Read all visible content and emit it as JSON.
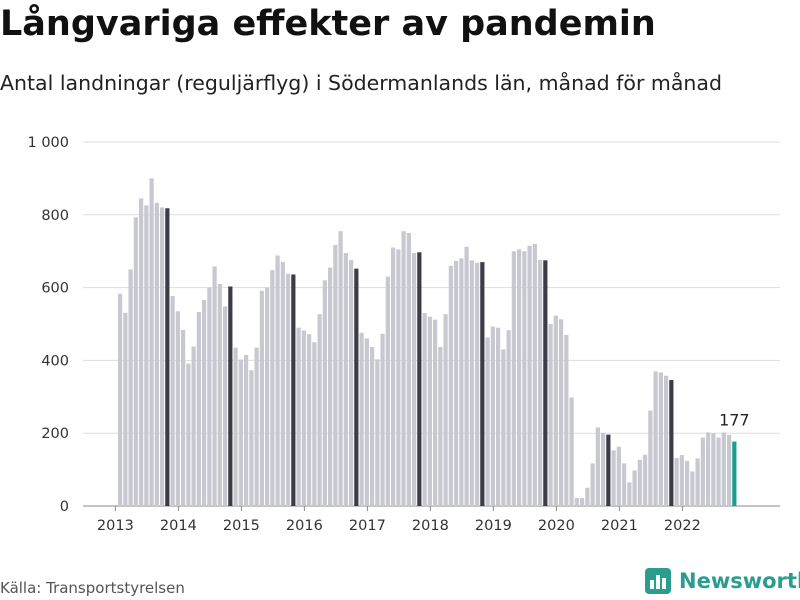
{
  "header": {
    "title": "Långvariga effekter av pandemin",
    "subtitle": "Antal landningar (reguljärflyg) i Södermanlands län, månad för månad"
  },
  "footer": {
    "source": "Källa: Transportstyrelsen",
    "brand": "Newsworthy",
    "brand_icon": "bar-chart-icon"
  },
  "colors": {
    "bar": "#c8c8d0",
    "highlight": "#3c3c46",
    "last": "#1a9e90",
    "grid": "#dddddd",
    "brand": "#2a9d8f"
  },
  "chart_data": {
    "type": "bar",
    "title": "Långvariga effekter av pandemin",
    "subtitle": "Antal landningar (reguljärflyg) i Södermanlands län, månad för månad",
    "xlabel": "",
    "ylabel": "",
    "ylim": [
      0,
      1000
    ],
    "yticks": [
      0,
      200,
      400,
      600,
      800,
      1000
    ],
    "ytick_labels": [
      "0",
      "200",
      "400",
      "600",
      "800",
      "1 000"
    ],
    "xtick_labels": [
      "2013",
      "2014",
      "2015",
      "2016",
      "2017",
      "2018",
      "2019",
      "2020",
      "2021",
      "2022"
    ],
    "grid": true,
    "annotation": {
      "label": "177"
    },
    "series": [
      {
        "year": "2013",
        "values": [
          583,
          531,
          650,
          793,
          845,
          826,
          900,
          833,
          820,
          818
        ]
      },
      {
        "year": "2014",
        "values": [
          577,
          535,
          484,
          391,
          438,
          533,
          566,
          600,
          658,
          610,
          548,
          603
        ]
      },
      {
        "year": "2015",
        "values": [
          435,
          402,
          415,
          373,
          435,
          591,
          600,
          648,
          688,
          670,
          638,
          636
        ]
      },
      {
        "year": "2016",
        "values": [
          490,
          482,
          472,
          450,
          527,
          620,
          655,
          717,
          755,
          695,
          676,
          652
        ]
      },
      {
        "year": "2017",
        "values": [
          476,
          460,
          437,
          403,
          473,
          630,
          710,
          705,
          755,
          750,
          695,
          697
        ]
      },
      {
        "year": "2018",
        "values": [
          530,
          520,
          512,
          437,
          527,
          660,
          673,
          680,
          712,
          675,
          668,
          670
        ]
      },
      {
        "year": "2019",
        "values": [
          463,
          493,
          490,
          430,
          483,
          700,
          705,
          700,
          715,
          720,
          676,
          675
        ]
      },
      {
        "year": "2020",
        "values": [
          500,
          523,
          513,
          470,
          298,
          22,
          22,
          50,
          117,
          216,
          201,
          196
        ]
      },
      {
        "year": "2021",
        "values": [
          153,
          163,
          117,
          65,
          98,
          127,
          141,
          262,
          370,
          367,
          358,
          346
        ]
      },
      {
        "year": "2022",
        "values": [
          132,
          140,
          124,
          95,
          131,
          188,
          202,
          200,
          188,
          202,
          195,
          177
        ]
      }
    ]
  }
}
